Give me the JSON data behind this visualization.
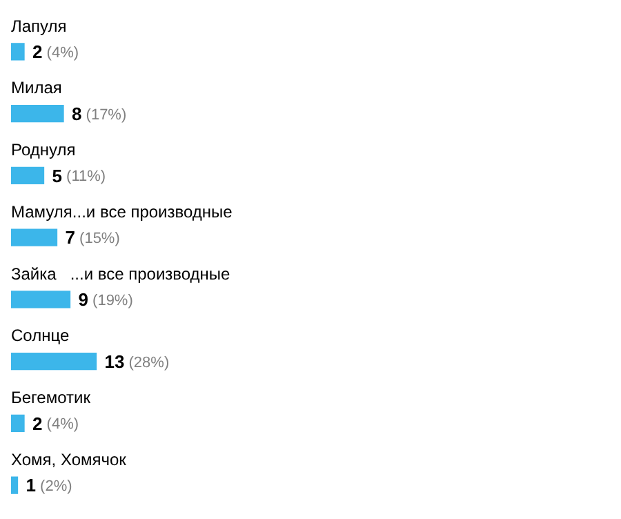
{
  "chart_data": {
    "type": "bar",
    "orientation": "horizontal",
    "categories": [
      "Лапуля",
      "Милая",
      "Роднуля",
      "Мамуля...и все производные",
      "Зайка   ...и все производные",
      "Солнце",
      "Бегемотик",
      "Хомя, Хомячок"
    ],
    "values": [
      2,
      8,
      5,
      7,
      9,
      13,
      2,
      1
    ],
    "value_labels": [
      "2 (4%)",
      "8 (17%)",
      "5 (11%)",
      "7 (15%)",
      "9 (19%)",
      "13 (28%)",
      "2 (4%)",
      "1 (2%)"
    ],
    "color": "#3cb6ea"
  }
}
